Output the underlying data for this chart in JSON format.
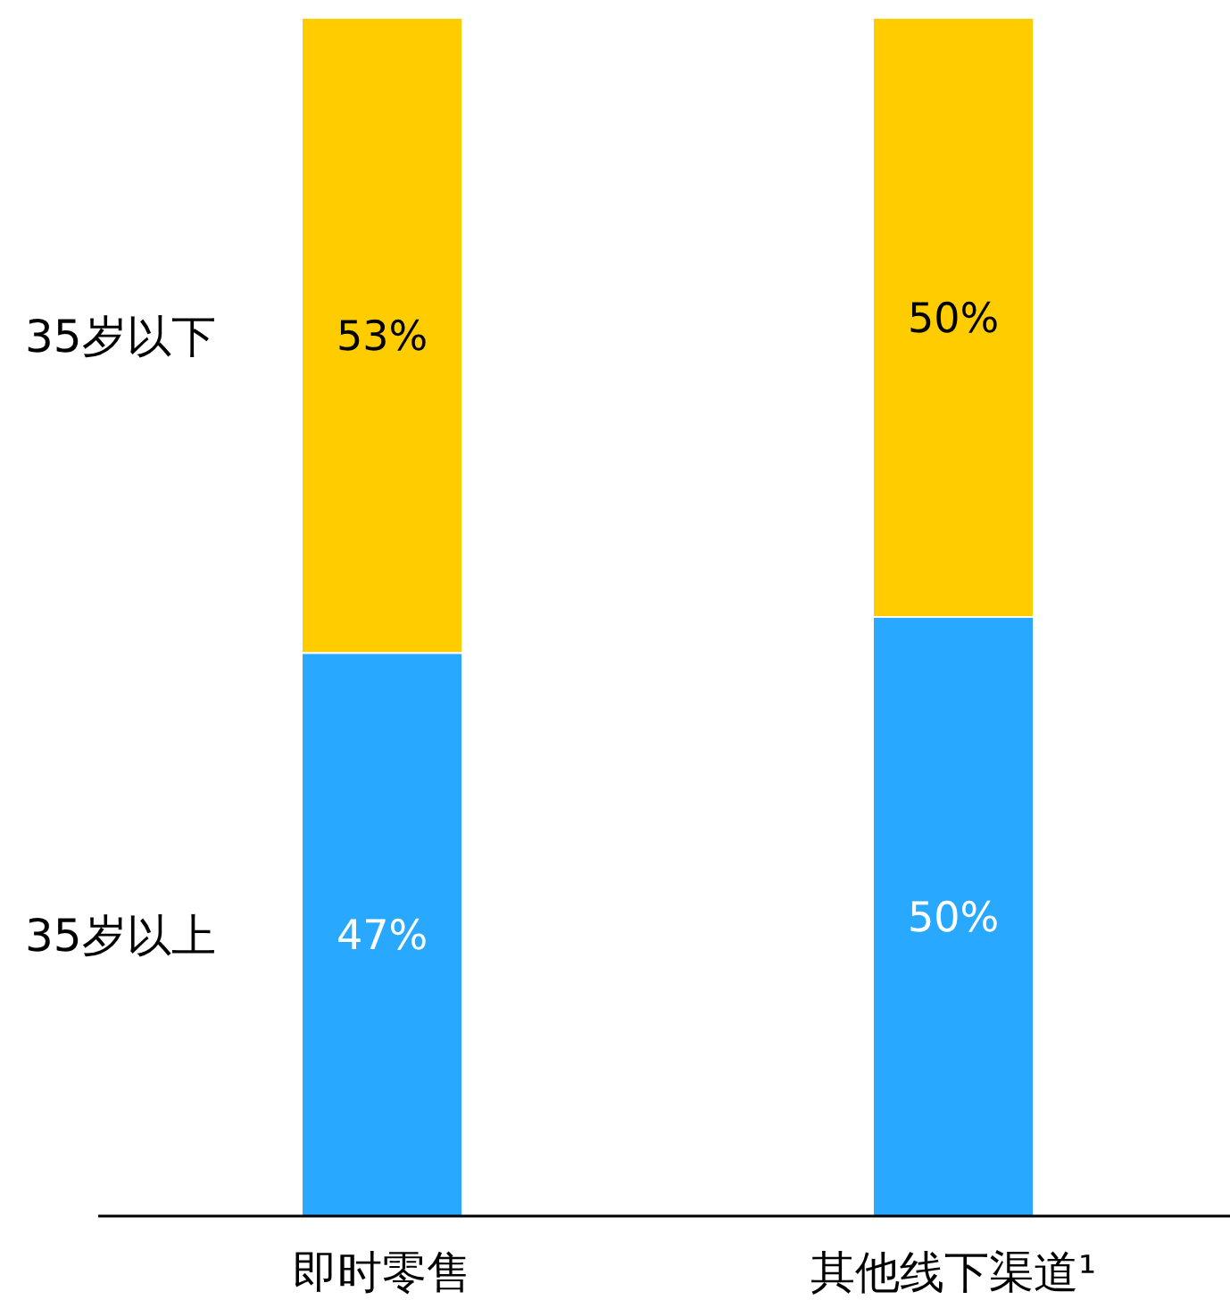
{
  "chart_data": {
    "type": "bar",
    "stacked": true,
    "tick_labels": "x",
    "categories": [
      "即时零售",
      "其他线下渠道¹"
    ],
    "series": [
      {
        "name": "35岁以上",
        "color": "#29a8ff",
        "values": [
          47,
          50
        ],
        "value_labels": [
          "47%",
          "50%"
        ]
      },
      {
        "name": "35岁以下",
        "color": "#ffcc00",
        "values": [
          53,
          50
        ],
        "value_labels": [
          "53%",
          "50%"
        ]
      }
    ]
  }
}
